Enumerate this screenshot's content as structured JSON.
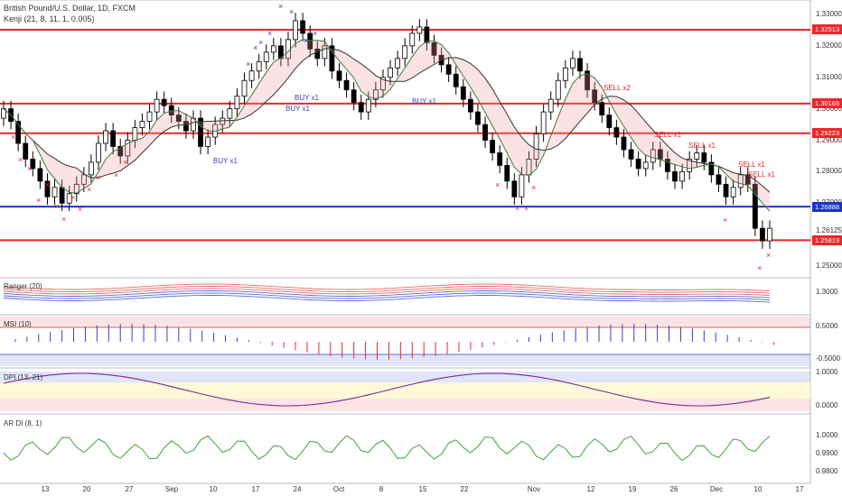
{
  "header": {
    "symbol": "British Pound/U.S. Dollar, 1D, FXCM",
    "indicator": "Kenji (21, 8, 11, 1, 0.005)"
  },
  "panes": {
    "ranger": "Ranger (20)",
    "msi": "MSI (10)",
    "dpi": "DPI (13, 21)",
    "ardi": "AR DI (8, 1)"
  },
  "price_axis": [
    "1.33000",
    "1.32000",
    "1.31000",
    "1.30000",
    "1.29000",
    "1.28000",
    "1.27000",
    "1.26125",
    "1.25000"
  ],
  "price_tags": [
    {
      "value": "1.32513",
      "color": "#e8282b"
    },
    {
      "value": "1.30165",
      "color": "#e8282b"
    },
    {
      "value": "1.29223",
      "color": "#e8282b"
    },
    {
      "value": "1.26888",
      "color": "#1a34c8"
    },
    {
      "value": "1.25819",
      "color": "#e8282b"
    }
  ],
  "ranger_axis": "1.3000",
  "msi_axis": [
    "0.5000",
    "-0.5000"
  ],
  "dpi_axis": [
    "1.0000",
    "0.0000"
  ],
  "ardi_axis": [
    "1.0000",
    "0.9900",
    "0.9800"
  ],
  "date_axis": [
    "13",
    "20",
    "27",
    "Sep",
    "10",
    "17",
    "24",
    "Oct",
    "8",
    "15",
    "22",
    "Nov",
    "12",
    "19",
    "26",
    "Dec",
    "10",
    "17"
  ],
  "signals": [
    {
      "text": "BUY x1",
      "color": "#3a3fc4"
    },
    {
      "text": "BUY x1",
      "color": "#3a3fc4"
    },
    {
      "text": "BUY x1",
      "color": "#3a3fc4"
    },
    {
      "text": "BUY x1",
      "color": "#3a3fc4"
    },
    {
      "text": "SELL x2",
      "color": "#e8282b"
    },
    {
      "text": "SELL x1",
      "color": "#e8282b"
    },
    {
      "text": "SELL x1",
      "color": "#e8282b"
    },
    {
      "text": "SELL x1",
      "color": "#e8282b"
    },
    {
      "text": "SELL x1",
      "color": "#e8282b"
    }
  ],
  "colors": {
    "bull": "#ffffff",
    "bear": "#000000",
    "red": "#e8282b",
    "blue": "#1a34c8"
  }
}
